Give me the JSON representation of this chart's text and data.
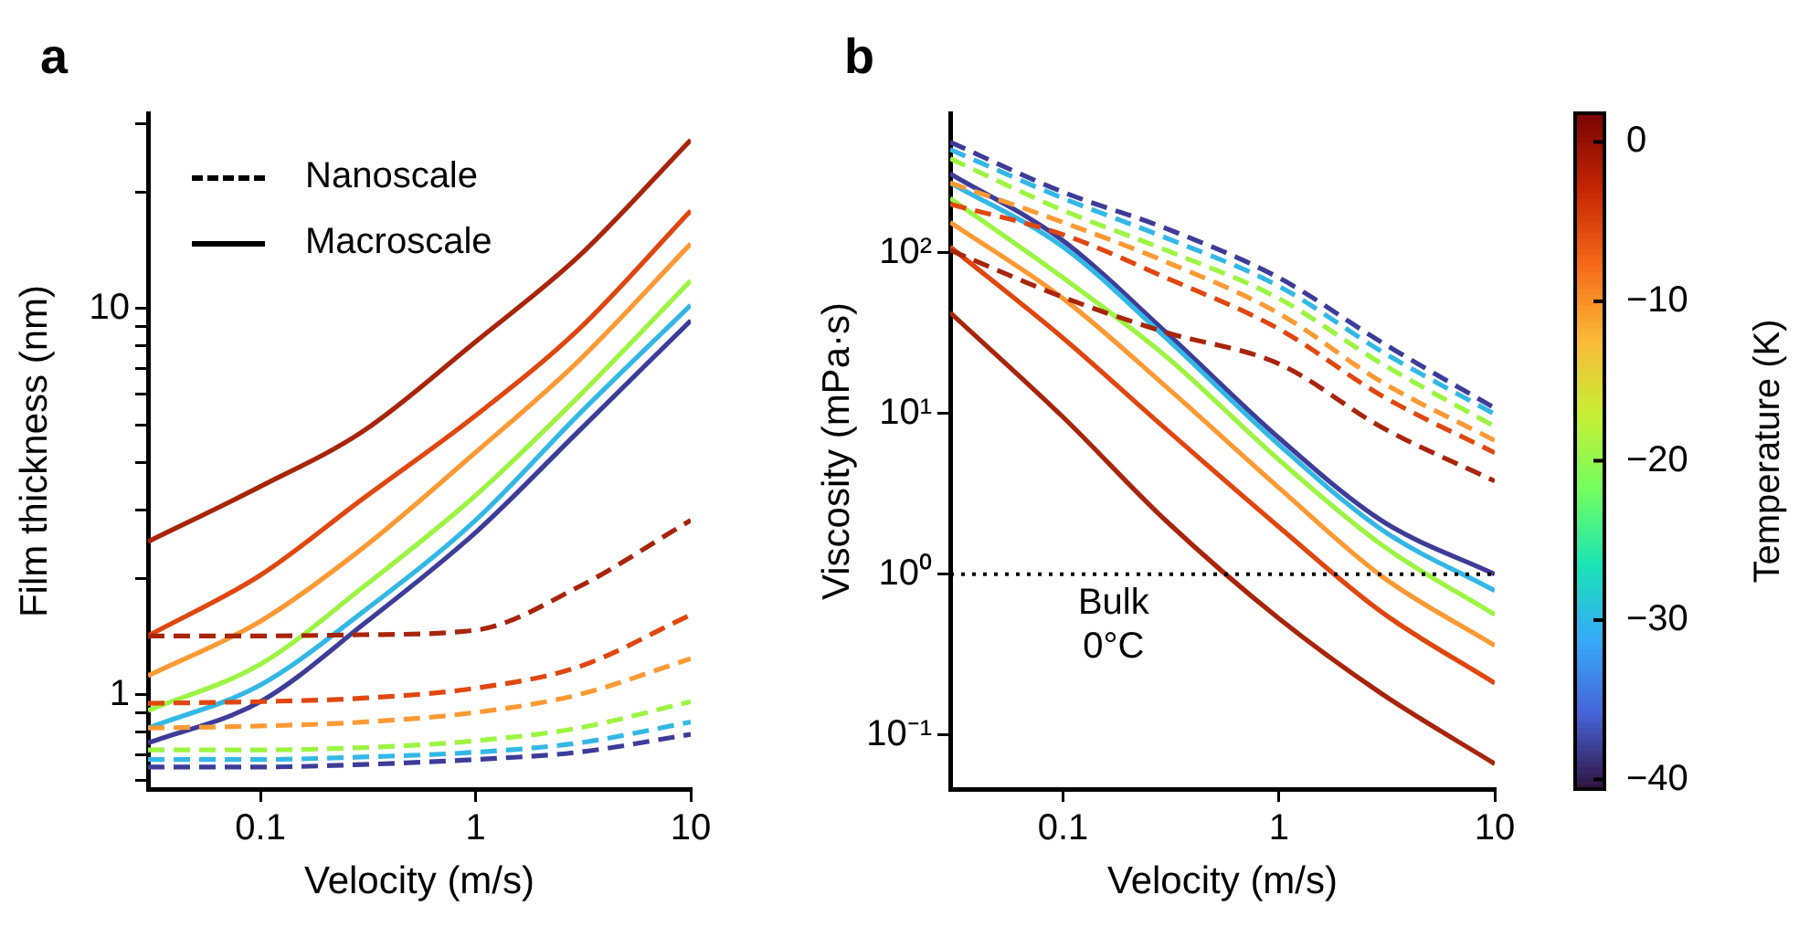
{
  "chart_data": [
    {
      "type": "line",
      "title": "a",
      "xlabel": "Velocity (m/s)",
      "ylabel": "Film thickness (nm)",
      "log": "xy",
      "xlim": [
        0.03,
        10
      ],
      "ylim": [
        0.57,
        32
      ],
      "xticks": [
        0.1,
        1,
        10
      ],
      "yticks": [
        {
          "value": 0.6,
          "label": null
        },
        {
          "value": 0.7,
          "label": null
        },
        {
          "value": 0.8,
          "label": null
        },
        {
          "value": 0.9,
          "label": null
        },
        1,
        {
          "value": 2,
          "label": null
        },
        {
          "value": 3,
          "label": null
        },
        {
          "value": 4,
          "label": null
        },
        {
          "value": 5,
          "label": null
        },
        {
          "value": 6,
          "label": null
        },
        {
          "value": 7,
          "label": null
        },
        {
          "value": 8,
          "label": null
        },
        {
          "value": 9,
          "label": null
        },
        10,
        {
          "value": 20,
          "label": null
        },
        {
          "value": 30,
          "label": null
        }
      ],
      "annotations": [
        "Nanoscale",
        "Macroscale"
      ],
      "x": [
        0.03,
        0.1,
        0.3,
        1,
        3,
        10
      ],
      "series": [
        {
          "color": "#a8250a",
          "line_style": "dashed",
          "values": [
            1.42,
            1.42,
            1.43,
            1.47,
            1.9,
            2.83
          ]
        },
        {
          "color": "#e0470f",
          "line_style": "dashed",
          "values": [
            0.95,
            0.96,
            0.98,
            1.04,
            1.18,
            1.61
          ]
        },
        {
          "color": "#fd9a34",
          "line_style": "dashed",
          "values": [
            0.82,
            0.83,
            0.85,
            0.9,
            1.0,
            1.24
          ]
        },
        {
          "color": "#9cf542",
          "line_style": "dashed",
          "values": [
            0.72,
            0.72,
            0.73,
            0.76,
            0.82,
            0.96
          ]
        },
        {
          "color": "#33b8e6",
          "line_style": "dashed",
          "values": [
            0.68,
            0.68,
            0.69,
            0.71,
            0.75,
            0.85
          ]
        },
        {
          "color": "#3d3c98",
          "line_style": "dashed",
          "values": [
            0.65,
            0.65,
            0.66,
            0.68,
            0.71,
            0.79
          ]
        },
        {
          "color": "#a8250a",
          "line_style": "solid",
          "values": [
            2.49,
            3.46,
            4.81,
            8.2,
            13.6,
            27.3
          ]
        },
        {
          "color": "#e0470f",
          "line_style": "solid",
          "values": [
            1.42,
            2.04,
            3.22,
            5.28,
            8.8,
            17.9
          ]
        },
        {
          "color": "#fd9a34",
          "line_style": "solid",
          "values": [
            1.12,
            1.55,
            2.4,
            4.24,
            7.3,
            14.7
          ]
        },
        {
          "color": "#9cf542",
          "line_style": "solid",
          "values": [
            0.91,
            1.2,
            1.9,
            3.28,
            5.9,
            11.8
          ]
        },
        {
          "color": "#33b8e6",
          "line_style": "solid",
          "values": [
            0.82,
            1.06,
            1.64,
            2.83,
            5.3,
            10.2
          ]
        },
        {
          "color": "#3d3c98",
          "line_style": "solid",
          "values": [
            0.75,
            0.96,
            1.52,
            2.63,
            4.8,
            9.3
          ]
        }
      ]
    },
    {
      "type": "line",
      "title": "b",
      "xlabel": "Velocity (m/s)",
      "ylabel": "Viscosity (mPa·s)",
      "log": "xy",
      "xlim": [
        0.03,
        10
      ],
      "ylim": [
        0.046,
        740
      ],
      "xticks": [
        0.1,
        1,
        10
      ],
      "yticks": [
        {
          "value": 0.1,
          "label": "10⁻¹"
        },
        {
          "value": 1,
          "label": "10⁰"
        },
        {
          "value": 10,
          "label": "10¹"
        },
        {
          "value": 100,
          "label": "10²"
        }
      ],
      "ref_lines": [
        {
          "axis": "y",
          "value": 1,
          "label": "Bulk\n0°C",
          "line_style": "dotted",
          "color": "#000000"
        }
      ],
      "clabel": "Temperature (K)",
      "clim": [
        -40.6,
        1.8
      ],
      "cticks": [
        0,
        -10,
        -20,
        -30,
        -40
      ],
      "x": [
        0.03,
        0.1,
        0.3,
        1,
        3,
        10
      ],
      "series": [
        {
          "color": "#a8250a",
          "line_style": "dashed",
          "values": [
            104,
            53,
            32,
            20.4,
            8.2,
            3.8
          ]
        },
        {
          "color": "#e0470f",
          "line_style": "dashed",
          "values": [
            201,
            130,
            70,
            33.6,
            12.9,
            5.7
          ]
        },
        {
          "color": "#fd9a34",
          "line_style": "dashed",
          "values": [
            273,
            155,
            88,
            42,
            15.7,
            6.8
          ]
        },
        {
          "color": "#9cf542",
          "line_style": "dashed",
          "values": [
            386,
            184,
            104,
            52,
            20.4,
            8.3
          ]
        },
        {
          "color": "#33b8e6",
          "line_style": "dashed",
          "values": [
            440,
            219,
            124,
            62,
            24.3,
            9.9
          ]
        },
        {
          "color": "#3d3c98",
          "line_style": "dashed",
          "values": [
            489,
            239,
            142,
            70,
            27.7,
            10.8
          ]
        },
        {
          "color": "#a8250a",
          "line_style": "solid",
          "values": [
            42.5,
            9.5,
            2.15,
            0.53,
            0.18,
            0.066
          ]
        },
        {
          "color": "#e0470f",
          "line_style": "solid",
          "values": [
            109,
            29.5,
            8.0,
            1.97,
            0.58,
            0.21
          ]
        },
        {
          "color": "#fd9a34",
          "line_style": "solid",
          "values": [
            155,
            52,
            14.7,
            3.45,
            0.97,
            0.36
          ]
        },
        {
          "color": "#9cf542",
          "line_style": "solid",
          "values": [
            219,
            70,
            22.7,
            5.15,
            1.52,
            0.56
          ]
        },
        {
          "color": "#33b8e6",
          "line_style": "solid",
          "values": [
            273,
            109,
            29.5,
            6.4,
            1.89,
            0.79
          ]
        },
        {
          "color": "#3d3c98",
          "line_style": "solid",
          "values": [
            311,
            119,
            32,
            7.05,
            2.15,
            1.0
          ]
        }
      ]
    }
  ]
}
